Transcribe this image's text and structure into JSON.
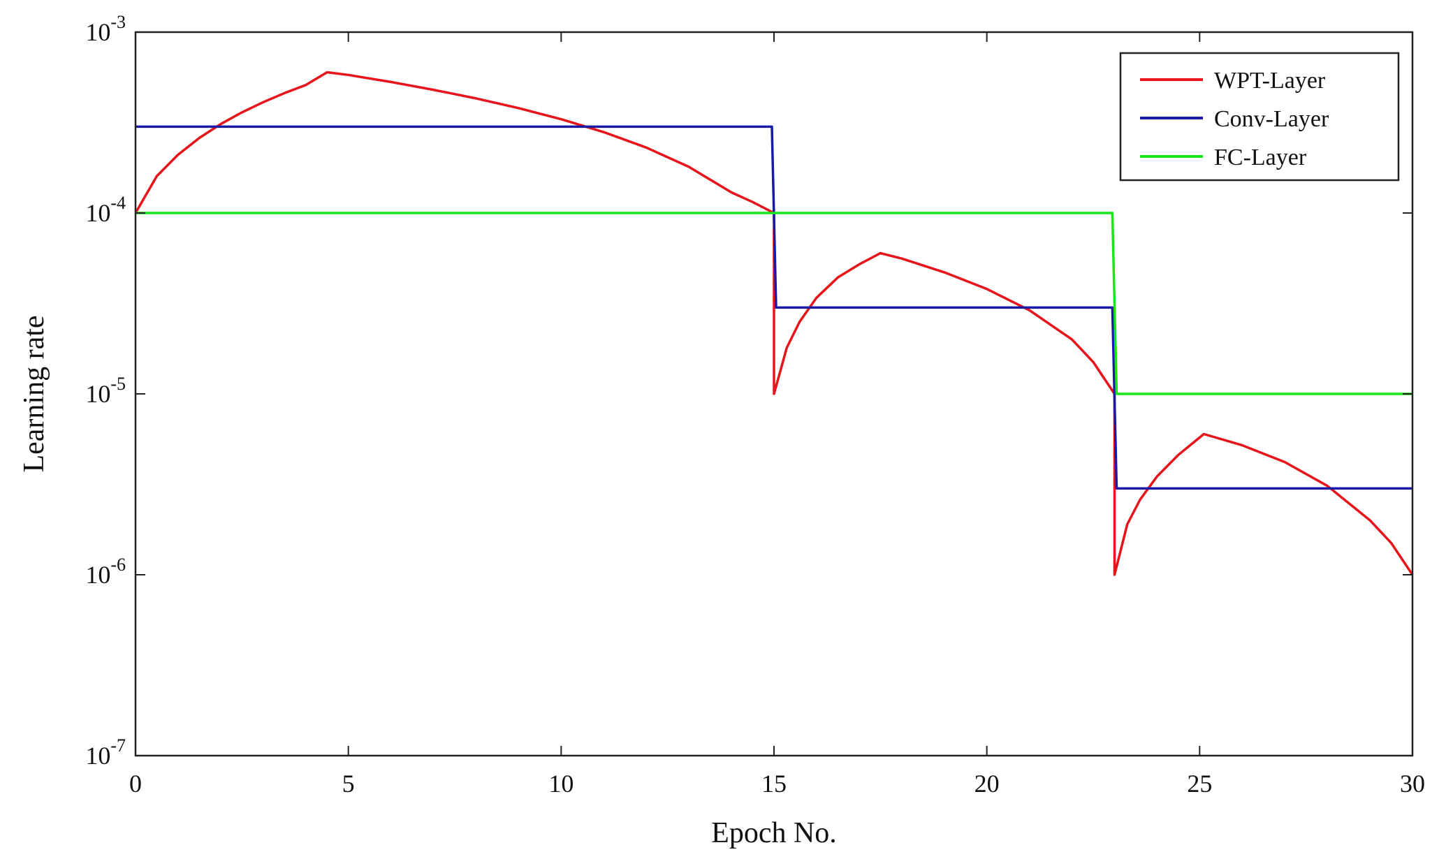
{
  "chart_data": {
    "type": "line",
    "title": "",
    "xlabel": "Epoch No.",
    "ylabel": "Learning rate",
    "xlim": [
      0,
      30
    ],
    "ylim": [
      1e-07,
      0.001
    ],
    "yscale": "log",
    "grid": false,
    "legend_position": "top-right",
    "x_ticks": [
      0,
      5,
      10,
      15,
      20,
      25,
      30
    ],
    "x_tick_labels": [
      "0",
      "5",
      "10",
      "15",
      "20",
      "25",
      "30"
    ],
    "y_ticks": [
      1e-07,
      1e-06,
      1e-05,
      0.0001,
      0.001
    ],
    "y_tick_labels": [
      {
        "base": "10",
        "exp": "-7"
      },
      {
        "base": "10",
        "exp": "-6"
      },
      {
        "base": "10",
        "exp": "-5"
      },
      {
        "base": "10",
        "exp": "-4"
      },
      {
        "base": "10",
        "exp": "-3"
      }
    ],
    "series": [
      {
        "name": "WPT-Layer",
        "color": "#e8141b",
        "x": [
          0,
          0.5,
          1,
          1.5,
          2,
          2.5,
          3,
          3.5,
          4,
          4.5,
          5,
          6,
          7,
          8,
          9,
          10,
          11,
          12,
          13,
          14,
          14.5,
          15,
          15,
          15.3,
          15.6,
          16,
          16.5,
          17,
          17.5,
          18,
          19,
          20,
          21,
          22,
          22.5,
          23,
          23,
          23.3,
          23.6,
          24,
          24.5,
          25.1,
          26,
          27,
          28,
          29,
          29.5,
          30
        ],
        "y": [
          0.0001,
          0.00016,
          0.00021,
          0.00026,
          0.00031,
          0.00036,
          0.00041,
          0.00046,
          0.00051,
          0.0006,
          0.00058,
          0.00053,
          0.00048,
          0.00043,
          0.00038,
          0.00033,
          0.00028,
          0.00023,
          0.00018,
          0.00013,
          0.000115,
          0.0001,
          1e-05,
          1.8e-05,
          2.5e-05,
          3.4e-05,
          4.4e-05,
          5.2e-05,
          6e-05,
          5.6e-05,
          4.7e-05,
          3.8e-05,
          2.9e-05,
          2e-05,
          1.5e-05,
          1e-05,
          1e-06,
          1.9e-06,
          2.6e-06,
          3.5e-06,
          4.6e-06,
          6e-06,
          5.2e-06,
          4.2e-06,
          3.1e-06,
          2e-06,
          1.5e-06,
          1e-06
        ]
      },
      {
        "name": "Conv-Layer",
        "color": "#1a1aa6",
        "x": [
          0,
          14.95,
          15.05,
          22.95,
          23.05,
          30
        ],
        "y": [
          0.0003,
          0.0003,
          3e-05,
          3e-05,
          3e-06,
          3e-06
        ]
      },
      {
        "name": "FC-Layer",
        "color": "#19e619",
        "x": [
          0,
          22.95,
          23.05,
          30
        ],
        "y": [
          0.0001,
          0.0001,
          1e-05,
          1e-05
        ]
      }
    ]
  }
}
